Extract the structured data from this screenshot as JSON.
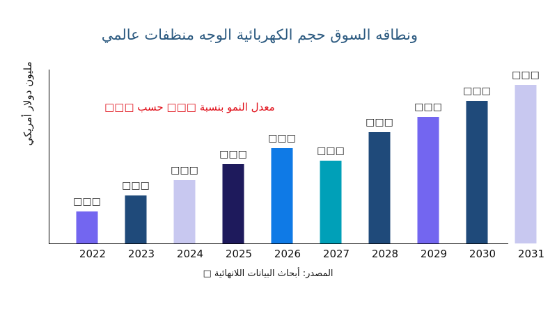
{
  "chart_data": {
    "type": "bar",
    "title": "ونطاقه السوق حجم الكهربائية الوجه منظفات عالمي",
    "ylabel": "مليون دولار أمريكي",
    "xlabel": "",
    "categories": [
      "2022",
      "2023",
      "2024",
      "2025",
      "2026",
      "2027",
      "2028",
      "2029",
      "2030",
      "2031"
    ],
    "values": [
      46,
      69,
      91,
      114,
      137,
      119,
      160,
      182,
      205,
      228
    ],
    "data_labels": [
      "□□□",
      "□□□",
      "□□□",
      "□□□",
      "□□□",
      "□□□",
      "□□□",
      "□□□",
      "□□□",
      "□□□"
    ],
    "colors": [
      "#7366f0",
      "#1f4a7a",
      "#c8c8f0",
      "#1e1a5c",
      "#0f7ae6",
      "#00a0b8",
      "#1f4a7a",
      "#7366f0",
      "#1f4a7a",
      "#c8c8f0"
    ],
    "ylim": [
      0,
      250
    ],
    "grid": false,
    "annotation": "معدل النمو بنسبة □□□ حسب □□□",
    "source": "المصدر: أبحاث البيانات اللانهائية □"
  }
}
